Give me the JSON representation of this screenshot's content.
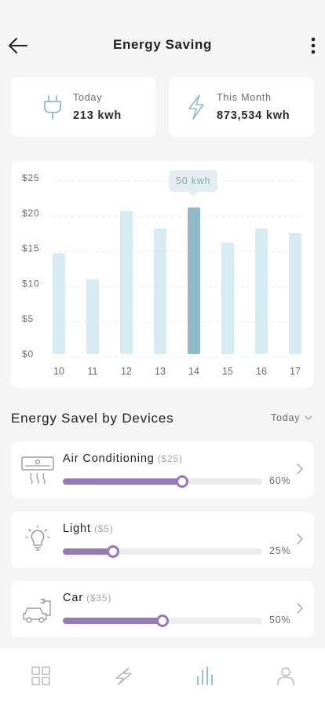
{
  "header": {
    "title": "Energy Saving",
    "back_icon": "arrow-left-icon",
    "more_icon": "more-vertical-icon"
  },
  "stats": [
    {
      "label": "Today",
      "value": "213 kwh",
      "icon": "plug-icon"
    },
    {
      "label": "This Month",
      "value": "873,534 kwh",
      "icon": "lightning-icon"
    }
  ],
  "chart_data": {
    "type": "bar",
    "categories": [
      "10",
      "11",
      "12",
      "13",
      "14",
      "15",
      "16",
      "17"
    ],
    "values": [
      14.3,
      10.6,
      20.3,
      17.8,
      20.8,
      15.8,
      17.8,
      17.2
    ],
    "y_ticks": [
      "$0",
      "$5",
      "$10",
      "$15",
      "$20",
      "$25"
    ],
    "ylim": [
      0,
      25
    ],
    "highlight_index": 4,
    "tooltip": "50 kwh",
    "colors": {
      "bar": "#d6ebf2",
      "highlight": "#8fbbc7"
    }
  },
  "devices_section": {
    "title": "Energy Savel by Devices",
    "period": "Today"
  },
  "devices": [
    {
      "name": "Air Conditioning",
      "cost": "($25)",
      "percent_label": "60%",
      "percent": 0.6,
      "icon": "air-conditioner-icon"
    },
    {
      "name": "Light",
      "cost": "($5)",
      "percent_label": "25%",
      "percent": 0.25,
      "icon": "lightbulb-icon"
    },
    {
      "name": "Car",
      "cost": "($35)",
      "percent_label": "50%",
      "percent": 0.5,
      "icon": "electric-car-icon"
    }
  ],
  "nav": [
    {
      "icon": "grid-icon",
      "active": false
    },
    {
      "icon": "lightning-icon",
      "active": false
    },
    {
      "icon": "bar-chart-icon",
      "active": true
    },
    {
      "icon": "user-icon",
      "active": false
    }
  ],
  "colors": {
    "accent": "#9579b8",
    "teal": "#8fbbc7",
    "background": "#f5f5f6"
  }
}
